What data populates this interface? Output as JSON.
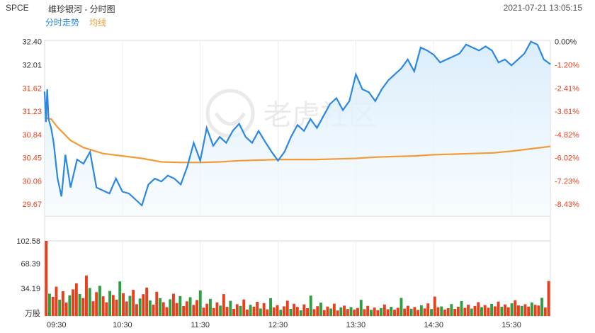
{
  "header": {
    "ticker": "SPCE",
    "name": "维珍银河 - 分时图",
    "timestamp": "2021-07-21 13:05:15"
  },
  "legend": {
    "price": "分时走势",
    "avg": "均线"
  },
  "watermark": "老虎社区",
  "colors": {
    "price": "#2b87e3",
    "avg": "#f29c38",
    "up": "#e8401c",
    "down": "#2ea043",
    "axis": "#333333"
  },
  "chart_data": {
    "type": "line",
    "series": [
      {
        "name": "分时走势",
        "x": [
          "09:30",
          "09:31",
          "09:32",
          "09:33",
          "09:35",
          "09:37",
          "09:40",
          "09:43",
          "09:46",
          "09:50",
          "09:55",
          "10:00",
          "10:05",
          "10:10",
          "10:15",
          "10:20",
          "10:25",
          "10:30",
          "10:35",
          "10:40",
          "10:45",
          "10:50",
          "10:55",
          "11:00",
          "11:05",
          "11:10",
          "11:15",
          "11:20",
          "11:25",
          "11:30",
          "11:35",
          "11:40",
          "11:45",
          "11:50",
          "11:55",
          "12:00",
          "12:05",
          "12:10",
          "12:15",
          "12:20",
          "12:25",
          "12:30",
          "12:35",
          "12:40",
          "12:45",
          "12:50",
          "12:55",
          "13:00",
          "13:05",
          "13:10",
          "13:15",
          "13:20",
          "13:25",
          "13:30",
          "13:35",
          "13:40",
          "13:45",
          "13:50",
          "13:55",
          "14:00",
          "14:05",
          "14:10",
          "14:15",
          "14:20",
          "14:25",
          "14:30",
          "14:35",
          "14:40",
          "14:45",
          "14:50",
          "14:55",
          "15:00",
          "15:05",
          "15:10",
          "15:15",
          "15:20",
          "15:25",
          "15:30",
          "15:35",
          "15:40",
          "15:45",
          "15:50",
          "15:55",
          "16:00"
        ],
        "values": [
          31.56,
          31.05,
          31.6,
          31.1,
          30.95,
          30.7,
          30.1,
          29.8,
          30.5,
          29.95,
          30.42,
          30.35,
          30.55,
          29.95,
          29.9,
          29.85,
          30.1,
          29.88,
          29.85,
          29.75,
          29.65,
          30.0,
          30.1,
          30.05,
          30.15,
          30.1,
          30.0,
          30.3,
          30.7,
          30.4,
          30.95,
          30.65,
          30.8,
          30.7,
          30.9,
          31.02,
          30.8,
          30.7,
          30.9,
          30.72,
          30.55,
          30.4,
          30.55,
          30.8,
          31.0,
          30.9,
          31.1,
          30.95,
          31.15,
          31.35,
          31.45,
          31.25,
          31.4,
          31.85,
          31.6,
          31.55,
          31.4,
          31.6,
          31.75,
          31.85,
          31.95,
          32.1,
          31.9,
          32.3,
          32.25,
          32.18,
          32.05,
          32.1,
          32.15,
          32.2,
          32.35,
          32.3,
          32.25,
          32.32,
          32.25,
          32.05,
          32.1,
          32.0,
          32.1,
          32.2,
          32.4,
          32.35,
          32.1,
          32.02
        ]
      },
      {
        "name": "均线",
        "x": [
          "09:30",
          "09:35",
          "09:40",
          "09:50",
          "10:00",
          "10:15",
          "10:30",
          "10:45",
          "11:00",
          "11:15",
          "11:30",
          "11:45",
          "12:00",
          "12:15",
          "12:30",
          "12:45",
          "13:00",
          "13:15",
          "13:30",
          "13:45",
          "14:00",
          "14:15",
          "14:30",
          "14:45",
          "15:00",
          "15:15",
          "15:30",
          "15:45",
          "16:00"
        ],
        "values": [
          31.12,
          31.1,
          30.96,
          30.74,
          30.62,
          30.52,
          30.48,
          30.44,
          30.38,
          30.37,
          30.37,
          30.38,
          30.4,
          30.41,
          30.42,
          30.42,
          30.42,
          30.43,
          30.44,
          30.46,
          30.47,
          30.48,
          30.5,
          30.51,
          30.52,
          30.53,
          30.56,
          30.6,
          30.64
        ]
      }
    ],
    "volume": {
      "name": "万股",
      "values": [
        102.58,
        30.5,
        26.2,
        40.1,
        22.3,
        33.8,
        18.4,
        28.2,
        36.4,
        44.6,
        30.1,
        24.5,
        55.4,
        38.2,
        20.1,
        32.6,
        41.2,
        26.9,
        18.7,
        34.3,
        28.6,
        22.4,
        47.2,
        31.1,
        19.8,
        27.5,
        35.7,
        16.2,
        23.9,
        29.8,
        38.8,
        21.2,
        15.5,
        33.1,
        24.4,
        18.9,
        12.1,
        22.8,
        30.4,
        17.7,
        27.2,
        13.5,
        19.9,
        25.6,
        15.1,
        21.8,
        34.9,
        11.4,
        16.7,
        23.3,
        10.8,
        18.6,
        14.2,
        29.9,
        12.5,
        20.7,
        9.8,
        16.1,
        13.7,
        22.5,
        8.9,
        15.2,
        12.8,
        19.4,
        10.3,
        17.6,
        9.1,
        24.3,
        11.7,
        14.8,
        8.5,
        13.2,
        20.9,
        9.7,
        16.6,
        12.4,
        7.8,
        15.9,
        10.6,
        27.8,
        9.3,
        13.4,
        18.2,
        8.1,
        12.9,
        10.2,
        16.8,
        7.5,
        11.8,
        14.1,
        9.6,
        12.2,
        8.8,
        10.9,
        22.1,
        9.4,
        13.8,
        8.4,
        11.5,
        7.9,
        10.8,
        15.7,
        9.2,
        12.6,
        8.6,
        11.2,
        24.7,
        10.1,
        13.9,
        9.9,
        12.3,
        8.3,
        14.6,
        10.4,
        17.2,
        9.5,
        26.5,
        11.9,
        13.1,
        8.7,
        10.6,
        16.3,
        9.7,
        12.7,
        20.4,
        11.1,
        15.4,
        10.2,
        13.6,
        18.9,
        12.1,
        14.9,
        11.3,
        16.5,
        13.2,
        19.6,
        12.6,
        15.8,
        11.9,
        17.3,
        21.5,
        14.4,
        13.7,
        16.1,
        12.8,
        18.4,
        15.2,
        14.3,
        24.8,
        11.6,
        47.8
      ],
      "ticks": [
        "102.58",
        "68.39",
        "34.19",
        "万股"
      ]
    },
    "price_ticks": [
      "32.40",
      "32.01",
      "31.62",
      "31.23",
      "30.84",
      "30.45",
      "30.06",
      "29.67"
    ],
    "pct_ticks": [
      "0.00%",
      "-1.20%",
      "-2.41%",
      "-3.61%",
      "-4.82%",
      "-6.02%",
      "-7.23%",
      "-8.43%"
    ],
    "time_ticks": [
      "09:30",
      "10:30",
      "11:30",
      "12:30",
      "13:30",
      "14:30",
      "15:30"
    ],
    "ylim": [
      29.47,
      32.42
    ],
    "grid": true,
    "legend_position": "top-left"
  }
}
